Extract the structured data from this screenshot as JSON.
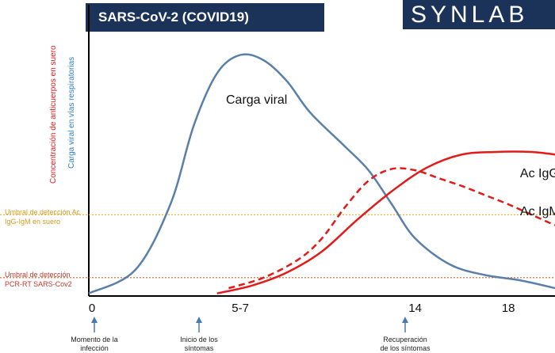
{
  "header": {
    "title": "SARS-CoV-2 (COVID19)",
    "logo_text": "SYNLAB"
  },
  "colors": {
    "viral": "#5a7fa8",
    "antibody": "#e21a1a",
    "igg_threshold": "#e5b83a",
    "pcr_threshold": "#c9662a",
    "header_bg": "#1b3358"
  },
  "axis_labels": {
    "y_antibodies": "Concentración de anticuerpos en suero",
    "y_viral": "Carga viral en vías respiratorias"
  },
  "thresholds": {
    "igg_igm": "Umbral de detección Ac\nIgG-IgM en suero",
    "pcr": "Umbral de detección\nPCR-RT SARS-Cov2"
  },
  "arrow_labels": {
    "infection": "Momento de la\ninfección",
    "symptoms_start": "Inicio de los\nsíntomas",
    "recovery": "Recuperación\nde los síntomas"
  },
  "chart_data": {
    "type": "line",
    "x_ticks": [
      "0",
      "5-7",
      "14",
      "18"
    ],
    "series": [
      {
        "name": "Carga viral",
        "style": "solid",
        "color": "#5a7fa8",
        "points": [
          [
            0,
            1
          ],
          [
            2,
            10
          ],
          [
            3.5,
            35
          ],
          [
            4.5,
            65
          ],
          [
            5.5,
            85
          ],
          [
            6.5,
            92
          ],
          [
            7.5,
            90
          ],
          [
            8.5,
            82
          ],
          [
            9.5,
            70
          ],
          [
            11,
            57
          ],
          [
            12,
            48
          ],
          [
            13,
            35
          ],
          [
            14,
            22
          ],
          [
            15.5,
            12
          ],
          [
            17,
            8
          ],
          [
            18.5,
            6
          ],
          [
            20,
            3
          ]
        ]
      },
      {
        "name": "Ac IgG",
        "style": "solid",
        "color": "#e21a1a",
        "points": [
          [
            5.5,
            1
          ],
          [
            7,
            4
          ],
          [
            8.5,
            9
          ],
          [
            10,
            17
          ],
          [
            11.5,
            29
          ],
          [
            13,
            40
          ],
          [
            14.5,
            49
          ],
          [
            16,
            54
          ],
          [
            17.5,
            55
          ],
          [
            19,
            55
          ],
          [
            20,
            54
          ]
        ]
      },
      {
        "name": "Ac IgM",
        "style": "dashed",
        "color": "#e21a1a",
        "points": [
          [
            6,
            3
          ],
          [
            7.5,
            7
          ],
          [
            9,
            14
          ],
          [
            10,
            22
          ],
          [
            11,
            34
          ],
          [
            12,
            44
          ],
          [
            13,
            48.5
          ],
          [
            14,
            48
          ],
          [
            15,
            45
          ],
          [
            16,
            42
          ],
          [
            17,
            38.5
          ],
          [
            18,
            35
          ],
          [
            19,
            31
          ],
          [
            20,
            27
          ]
        ]
      }
    ],
    "ylim": [
      0,
      100
    ],
    "thresholds": [
      {
        "label": "Ac IgG-IgM",
        "y": 31
      },
      {
        "label": "PCR",
        "y": 7
      }
    ]
  }
}
